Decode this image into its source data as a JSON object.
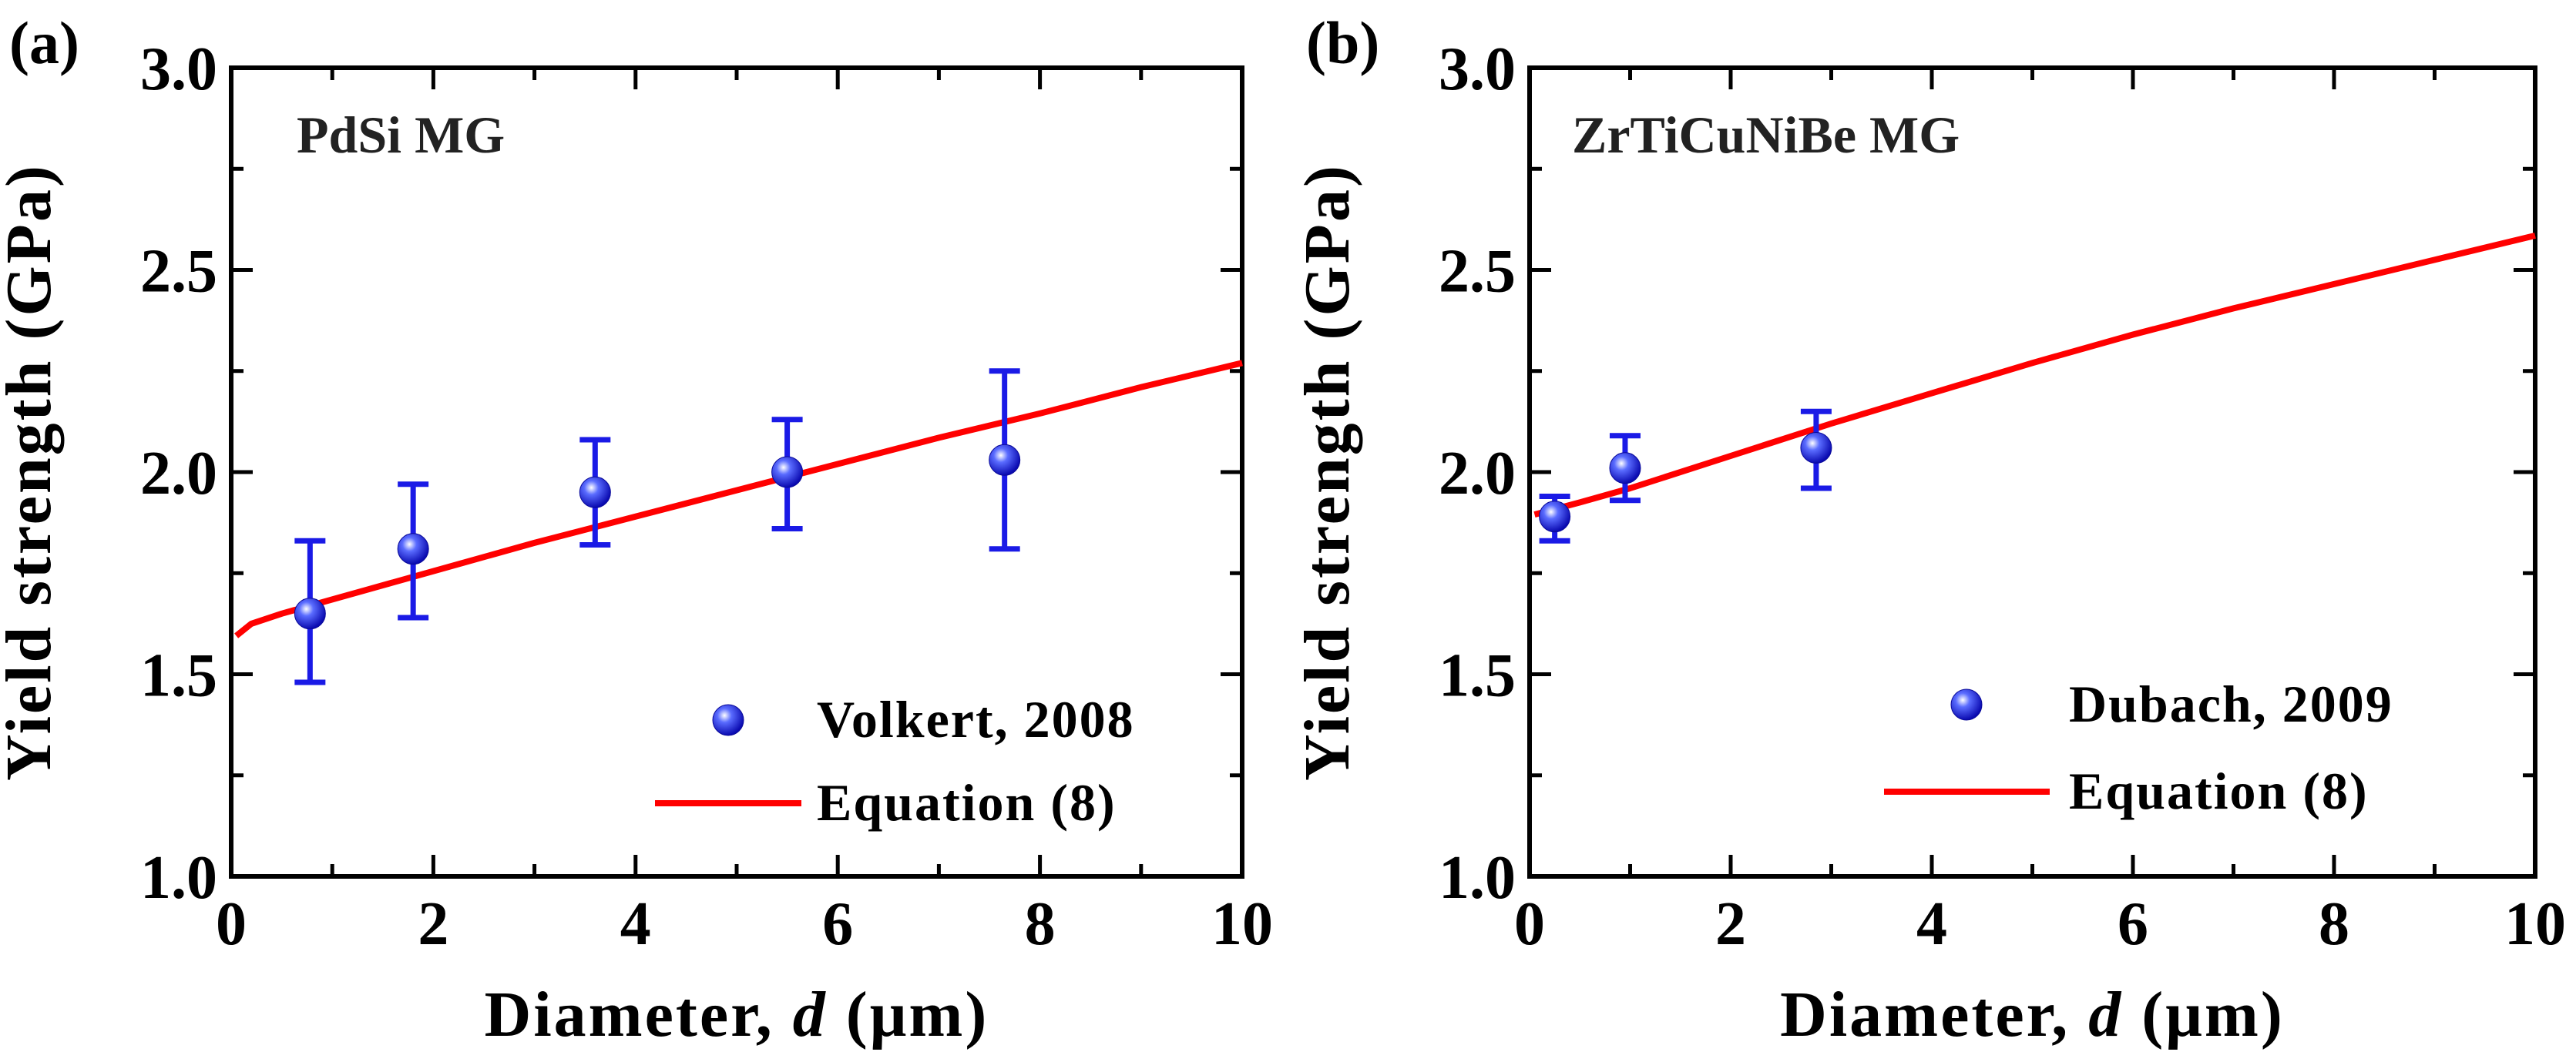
{
  "chart_data": [
    {
      "type": "scatter",
      "panel_label": "(a)",
      "annotation": "PdSi MG",
      "xlabel": {
        "prefix": "Diameter, ",
        "variable": "d",
        "suffix": " (μm)"
      },
      "ylabel": "Yield strength (GPa)",
      "xlim": [
        0,
        10
      ],
      "ylim": [
        1.0,
        3.0
      ],
      "x_ticks": [
        "0",
        "2",
        "4",
        "6",
        "8",
        "10"
      ],
      "y_ticks": [
        "1.0",
        "1.5",
        "2.0",
        "2.5",
        "3.0"
      ],
      "grid": false,
      "legend_position": "bottom-right",
      "series": [
        {
          "name": "Volkert, 2008",
          "kind": "points_with_error_bars",
          "color": "#1a1ae6",
          "x": [
            0.78,
            1.8,
            3.6,
            5.5,
            7.65
          ],
          "y": [
            1.65,
            1.81,
            1.95,
            2.0,
            2.03
          ],
          "err_low": [
            0.17,
            0.17,
            0.13,
            0.14,
            0.22
          ],
          "err_high": [
            0.18,
            0.16,
            0.13,
            0.13,
            0.22
          ]
        },
        {
          "name": "Equation (8)",
          "kind": "line",
          "color": "#ff0000",
          "x": [
            0.05,
            0.2,
            0.5,
            1,
            2,
            3,
            4,
            5,
            6,
            7,
            8,
            9,
            10
          ],
          "y": [
            1.595,
            1.625,
            1.65,
            1.685,
            1.755,
            1.825,
            1.89,
            1.955,
            2.02,
            2.085,
            2.145,
            2.21,
            2.27
          ]
        }
      ]
    },
    {
      "type": "scatter",
      "panel_label": "(b)",
      "annotation": "ZrTiCuNiBe MG",
      "xlabel": {
        "prefix": "Diameter, ",
        "variable": "d",
        "suffix": " (μm)"
      },
      "ylabel": "Yield strength (GPa)",
      "xlim": [
        0,
        10
      ],
      "ylim": [
        1.0,
        3.0
      ],
      "x_ticks": [
        "0",
        "2",
        "4",
        "6",
        "8",
        "10"
      ],
      "y_ticks": [
        "1.0",
        "1.5",
        "2.0",
        "2.5",
        "3.0"
      ],
      "grid": false,
      "legend_position": "bottom-right",
      "series": [
        {
          "name": "Dubach, 2009",
          "kind": "points_with_error_bars",
          "color": "#1a1ae6",
          "x": [
            0.25,
            0.95,
            2.85
          ],
          "y": [
            1.89,
            2.01,
            2.06
          ],
          "err_low": [
            0.06,
            0.08,
            0.1
          ],
          "err_high": [
            0.05,
            0.08,
            0.09
          ]
        },
        {
          "name": "Equation (8)",
          "kind": "line",
          "color": "#ff0000",
          "x": [
            0.05,
            0.5,
            1,
            2,
            3,
            4,
            5,
            6,
            7,
            8,
            9,
            10
          ],
          "y": [
            1.895,
            1.925,
            1.96,
            2.04,
            2.12,
            2.195,
            2.27,
            2.34,
            2.405,
            2.465,
            2.525,
            2.585
          ]
        }
      ]
    }
  ]
}
